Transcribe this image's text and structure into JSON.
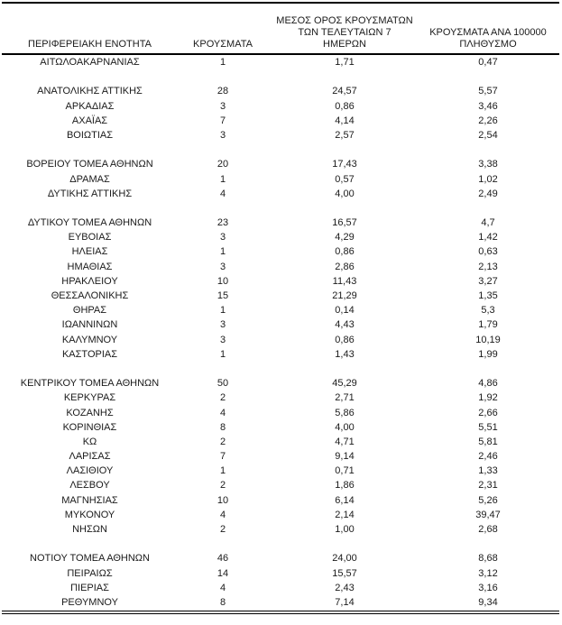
{
  "colors": {
    "text": "#1a1a1a",
    "rule": "#000000",
    "background": "#ffffff"
  },
  "table": {
    "columns": [
      {
        "id": "region",
        "label": "ΠΕΡΙΦΕΡΕΙΑΚΗ ΕΝΟΤΗΤΑ"
      },
      {
        "id": "cases",
        "label": "ΚΡΟΥΣΜΑΤΑ"
      },
      {
        "id": "avg7",
        "label": "ΜΕΣΟΣ ΟΡΟΣ ΚΡΟΥΣΜΑΤΩΝ\nΤΩΝ ΤΕΛΕΥΤΑΙΩΝ 7\nΗΜΕΡΩΝ"
      },
      {
        "id": "per100k",
        "label": "ΚΡΟΥΣΜΑΤΑ ΑΝΑ 100000\nΠΛΗΘΥΣΜΟ"
      }
    ],
    "sections": [
      {
        "rows": [
          [
            "ΑΙΤΩΛΟΑΚΑΡΝΑΝΙΑΣ",
            "1",
            "1,71",
            "0,47"
          ]
        ]
      },
      {
        "rows": [
          [
            "ΑΝΑΤΟΛΙΚΗΣ ΑΤΤΙΚΗΣ",
            "28",
            "24,57",
            "5,57"
          ],
          [
            "ΑΡΚΑΔΙΑΣ",
            "3",
            "0,86",
            "3,46"
          ],
          [
            "ΑΧΑΪΑΣ",
            "7",
            "4,14",
            "2,26"
          ],
          [
            "ΒΟΙΩΤΙΑΣ",
            "3",
            "2,57",
            "2,54"
          ]
        ]
      },
      {
        "rows": [
          [
            "ΒΟΡΕΙΟΥ ΤΟΜΕΑ ΑΘΗΝΩΝ",
            "20",
            "17,43",
            "3,38"
          ],
          [
            "ΔΡΑΜΑΣ",
            "1",
            "0,57",
            "1,02"
          ],
          [
            "ΔΥΤΙΚΗΣ ΑΤΤΙΚΗΣ",
            "4",
            "4,00",
            "2,49"
          ]
        ]
      },
      {
        "rows": [
          [
            "ΔΥΤΙΚΟΥ ΤΟΜΕΑ ΑΘΗΝΩΝ",
            "23",
            "16,57",
            "4,7"
          ],
          [
            "ΕΥΒΟΙΑΣ",
            "3",
            "4,29",
            "1,42"
          ],
          [
            "ΗΛΕΙΑΣ",
            "1",
            "0,86",
            "0,63"
          ],
          [
            "ΗΜΑΘΙΑΣ",
            "3",
            "2,86",
            "2,13"
          ],
          [
            "ΗΡΑΚΛΕΙΟΥ",
            "10",
            "11,43",
            "3,27"
          ],
          [
            "ΘΕΣΣΑΛΟΝΙΚΗΣ",
            "15",
            "21,29",
            "1,35"
          ],
          [
            "ΘΗΡΑΣ",
            "1",
            "0,14",
            "5,3"
          ],
          [
            "ΙΩΑΝΝΙΝΩΝ",
            "3",
            "4,43",
            "1,79"
          ],
          [
            "ΚΑΛΥΜΝΟΥ",
            "3",
            "0,86",
            "10,19"
          ],
          [
            "ΚΑΣΤΟΡΙΑΣ",
            "1",
            "1,43",
            "1,99"
          ]
        ]
      },
      {
        "rows": [
          [
            "ΚΕΝΤΡΙΚΟΥ ΤΟΜΕΑ ΑΘΗΝΩΝ",
            "50",
            "45,29",
            "4,86"
          ],
          [
            "ΚΕΡΚΥΡΑΣ",
            "2",
            "2,71",
            "1,92"
          ],
          [
            "ΚΟΖΑΝΗΣ",
            "4",
            "5,86",
            "2,66"
          ],
          [
            "ΚΟΡΙΝΘΙΑΣ",
            "8",
            "4,00",
            "5,51"
          ],
          [
            "ΚΩ",
            "2",
            "4,71",
            "5,81"
          ],
          [
            "ΛΑΡΙΣΑΣ",
            "7",
            "9,14",
            "2,46"
          ],
          [
            "ΛΑΣΙΘΙΟΥ",
            "1",
            "0,71",
            "1,33"
          ],
          [
            "ΛΕΣΒΟΥ",
            "2",
            "1,86",
            "2,31"
          ],
          [
            "ΜΑΓΝΗΣΙΑΣ",
            "10",
            "6,14",
            "5,26"
          ],
          [
            "ΜΥΚΟΝΟΥ",
            "4",
            "2,14",
            "39,47"
          ],
          [
            "ΝΗΣΩΝ",
            "2",
            "1,00",
            "2,68"
          ]
        ]
      },
      {
        "rows": [
          [
            "ΝΟΤΙΟΥ ΤΟΜΕΑ ΑΘΗΝΩΝ",
            "46",
            "24,00",
            "8,68"
          ],
          [
            "ΠΕΙΡΑΙΩΣ",
            "14",
            "15,57",
            "3,12"
          ],
          [
            "ΠΙΕΡΙΑΣ",
            "4",
            "2,43",
            "3,16"
          ],
          [
            "ΡΕΘΥΜΝΟΥ",
            "8",
            "7,14",
            "9,34"
          ]
        ]
      }
    ]
  }
}
